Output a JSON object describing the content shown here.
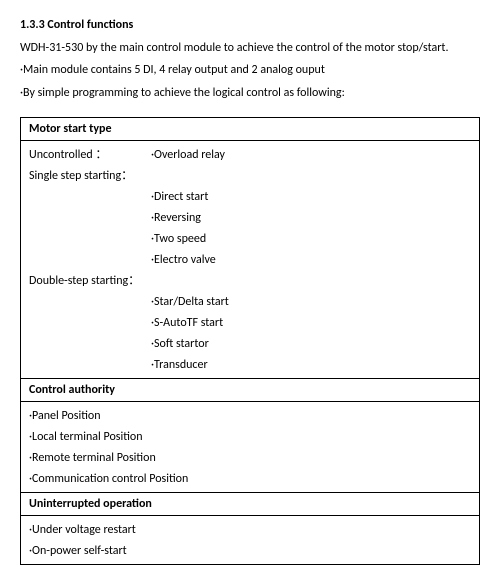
{
  "heading": "1.3.3 Control functions",
  "intro": [
    "WDH-31-530 by the main control module to achieve the control of the motor stop/start.",
    "·Main module contains 5 DI, 4 relay output and 2 analog ouput",
    "·By simple programming to achieve the logical control as following:"
  ],
  "sec1": {
    "title": "Motor start type",
    "uncontrolled_label": "Uncontrolled ：",
    "uncontrolled_value": "·Overload relay",
    "single_label": "Single step starting：",
    "single_items": [
      "·Direct start",
      "·Reversing",
      "·Two speed",
      "·Electro valve"
    ],
    "double_label": "Double-step starting：",
    "double_items": [
      "·Star/Delta start",
      "·S-AutoTF start",
      "·Soft startor",
      "·Transducer"
    ]
  },
  "sec2": {
    "title": "Control authority",
    "items": [
      "·Panel Position",
      "·Local terminal Position",
      "·Remote terminal Position",
      "·Communication control Position"
    ]
  },
  "sec3": {
    "title": "Uninterrupted operation",
    "items": [
      "·Under voltage restart",
      "·On-power self-start"
    ]
  }
}
